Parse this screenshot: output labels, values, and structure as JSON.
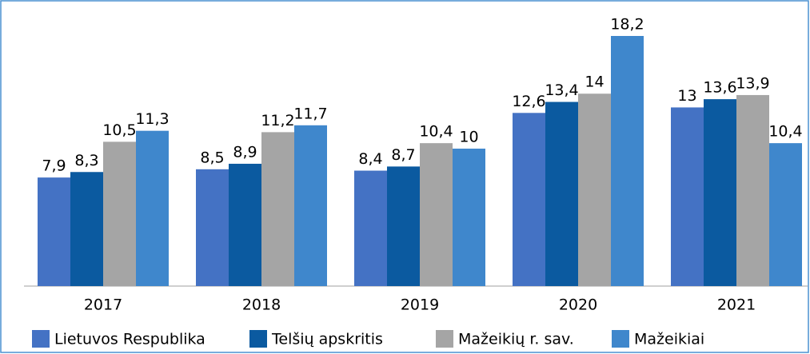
{
  "chart_data": {
    "type": "bar",
    "categories": [
      "2017",
      "2018",
      "2019",
      "2020",
      "2021"
    ],
    "series": [
      {
        "name": "Lietuvos Respublika",
        "color": "#4472c4",
        "values": [
          7.9,
          8.5,
          8.4,
          12.6,
          13
        ],
        "value_labels": [
          "7,9",
          "8,5",
          "8,4",
          "12,6",
          "13"
        ]
      },
      {
        "name": "Telšių apskritis",
        "color": "#0b5aa0",
        "values": [
          8.3,
          8.9,
          8.7,
          13.4,
          13.6
        ],
        "value_labels": [
          "8,3",
          "8,9",
          "8,7",
          "13,4",
          "13,6"
        ]
      },
      {
        "name": "Mažeikių r. sav.",
        "color": "#a5a5a5",
        "values": [
          10.5,
          11.2,
          10.4,
          14,
          13.9
        ],
        "value_labels": [
          "10,5",
          "11,2",
          "10,4",
          "14",
          "13,9"
        ]
      },
      {
        "name": "Mažeikiai",
        "color": "#3f87cc",
        "values": [
          11.3,
          11.7,
          10,
          18.2,
          10.4
        ],
        "value_labels": [
          "11,3",
          "11,7",
          "10",
          "18,2",
          "10,4"
        ]
      }
    ],
    "legend": "bottom"
  }
}
